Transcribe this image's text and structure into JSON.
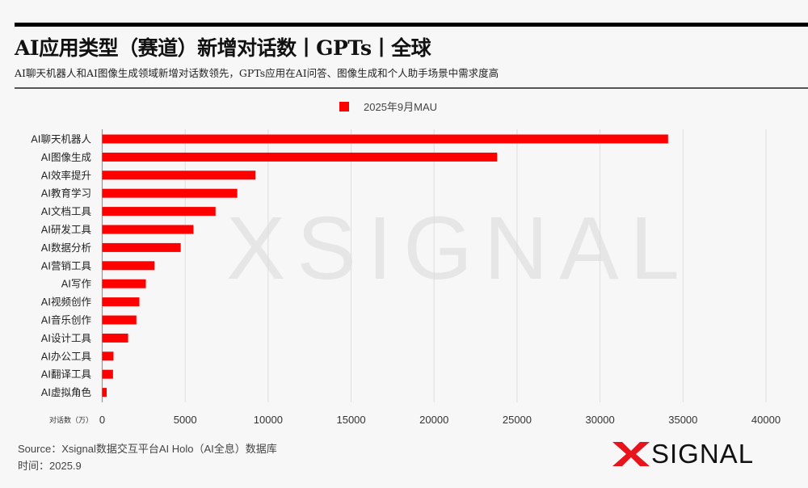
{
  "header": {
    "title": "AI应用类型（赛道）新增对话数丨GPTs丨全球",
    "subtitle": "AI聊天机器人和AI图像生成领域新增对话数领先，GPTs应用在AI问答、图像生成和个人助手场景中需求度高"
  },
  "chart_data": {
    "type": "bar",
    "orientation": "horizontal",
    "title": "AI应用类型（赛道）新增对话数丨GPTs丨全球",
    "xlabel": "对话数（万）",
    "ylabel": "",
    "xlim": [
      0,
      40000
    ],
    "xticks": [
      "0",
      "5000",
      "10000",
      "15000",
      "20000",
      "25000",
      "30000",
      "35000",
      "40000"
    ],
    "grid": true,
    "legend_position": "top-center",
    "categories": [
      "AI聊天机器人",
      "AI图像生成",
      "AI效率提升",
      "AI教育学习",
      "AI文档工具",
      "AI研发工具",
      "AI数据分析",
      "AI营销工具",
      "AI写作",
      "AI视频创作",
      "AI音乐创作",
      "AI设计工具",
      "AI办公工具",
      "AI翻译工具",
      "AI虚拟角色"
    ],
    "series": [
      {
        "name": "2025年9月MAU",
        "color": "#ff0000",
        "values": [
          34100,
          23800,
          9240,
          8140,
          6830,
          5500,
          4730,
          3150,
          2630,
          2240,
          2060,
          1560,
          680,
          650,
          270
        ]
      }
    ]
  },
  "footer": {
    "source": "Source：Xsignal数据交互平台AI Holo（AI全息）数据库",
    "time": "时间：2025.9"
  },
  "logo": {
    "text": "SIGNAL",
    "mark": "X",
    "accent": "#e8141c"
  },
  "watermark": "XSIGNAL"
}
